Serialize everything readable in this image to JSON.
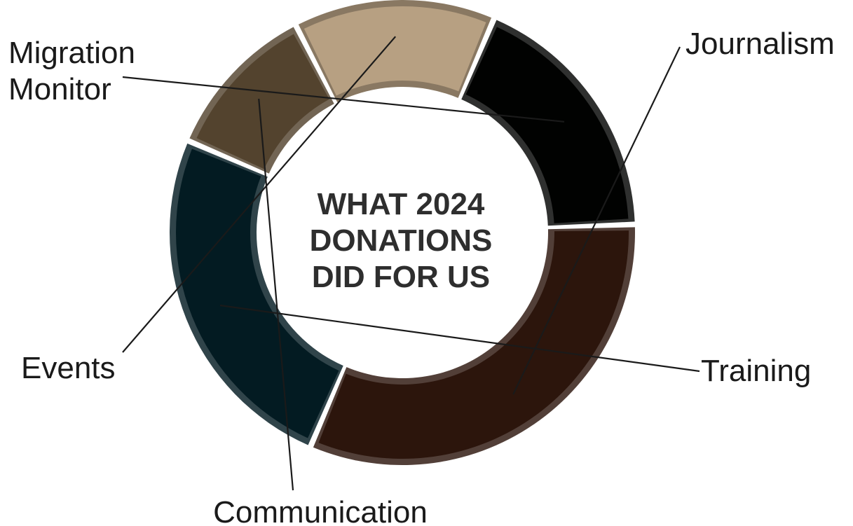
{
  "chart_data": {
    "type": "pie",
    "variant": "donut",
    "title": "WHAT 2024 DONATIONS DID FOR US",
    "center_lines": [
      "WHAT 2024",
      "DONATIONS",
      "DID FOR US"
    ],
    "legend": "none",
    "slices": [
      {
        "label": "Journalism",
        "value": 32,
        "color": "#2c150c"
      },
      {
        "label": "Training",
        "value": 25,
        "color": "#031b22"
      },
      {
        "label": "Communication",
        "value": 11,
        "color": "#53432e"
      },
      {
        "label": "Events",
        "value": 14,
        "color": "#b7a082"
      },
      {
        "label": "Migration Monitor",
        "value": 18,
        "color": "#010201",
        "display_lines": [
          "Migration",
          "Monitor"
        ]
      }
    ]
  }
}
